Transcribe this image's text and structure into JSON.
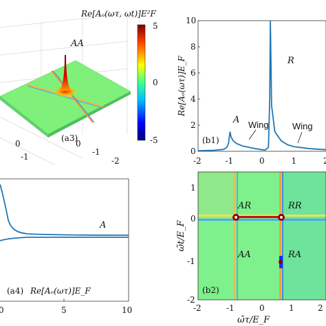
{
  "panel_a3": {
    "ylabel": "Re[Aₒ(ωτ, ωt)]E²F",
    "peak_label": "AA",
    "tag": "(a3)",
    "ticks": [
      "0",
      "-1",
      "-2"
    ],
    "colorbar_ticks": [
      "5",
      "0",
      "-5"
    ]
  },
  "panel_a4": {
    "tag": "(a4)",
    "ylabel": "Re[Aₒ(ωτ)]E_F",
    "curve_label": "A",
    "xticks": [
      "0",
      "5",
      "10"
    ]
  },
  "panel_b2": {
    "tag": "(b2)",
    "xlabel": "ω̃τ/E_F",
    "ylabel": "ω̃t/E_F",
    "xticks": [
      "-2",
      "-1",
      "0",
      "1",
      "2"
    ],
    "yticks": [
      "1",
      "0",
      "-1",
      "-2"
    ],
    "quadrant_labels": [
      "AR",
      "RR",
      "AA",
      "RA"
    ]
  },
  "chart_data": [
    {
      "type": "line",
      "panel": "(b1)",
      "ylabel": "Re[Aₒ(ωτ)]E_F",
      "xlim": [
        -2,
        2
      ],
      "ylim": [
        0,
        10
      ],
      "xticks": [
        "-2",
        "-1",
        "0",
        "1",
        "2"
      ],
      "yticks": [
        "0",
        "2",
        "4",
        "6",
        "8",
        "10"
      ],
      "annotations": [
        "A",
        "R",
        "Wing",
        "Wing"
      ],
      "series": [
        {
          "x": [
            -2.0,
            -1.5,
            -1.2,
            -1.1,
            -1.05,
            -1.0,
            -0.97,
            -0.9,
            -0.8,
            -0.6,
            -0.4,
            -0.2,
            0.0,
            0.1,
            0.2,
            0.24,
            0.26,
            0.3,
            0.4,
            0.6,
            0.8,
            1.0,
            1.5,
            2.0
          ],
          "y": [
            0.05,
            0.08,
            0.15,
            0.3,
            0.6,
            1.5,
            1.1,
            0.8,
            0.6,
            0.4,
            0.3,
            0.2,
            0.12,
            0.1,
            0.3,
            4.0,
            10.0,
            3.5,
            1.5,
            0.8,
            0.5,
            0.35,
            0.2,
            0.12
          ]
        }
      ]
    }
  ]
}
